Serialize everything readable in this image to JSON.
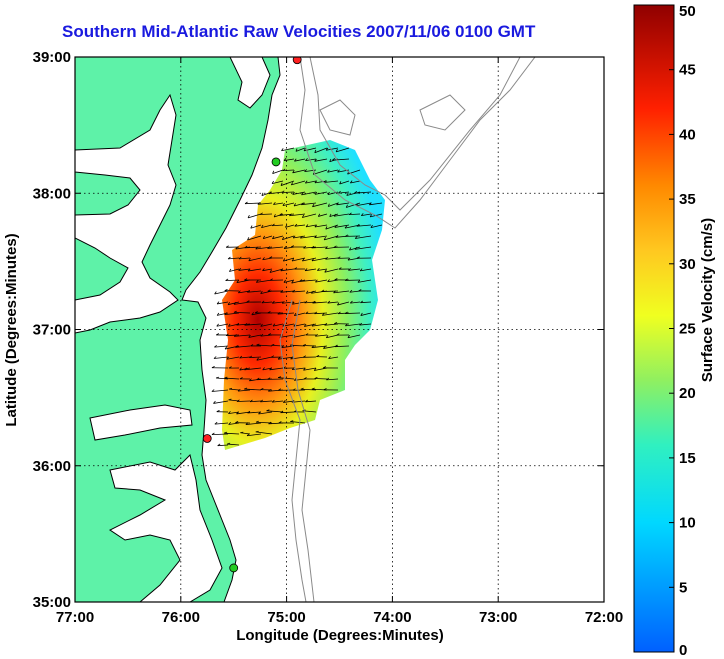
{
  "title": "Southern Mid-Atlantic Raw Velocities 2007/11/06 0100 GMT",
  "map": {
    "xlabel": "Longitude (Degrees:Minutes)",
    "ylabel": "Latitude (Degrees:Minutes)",
    "lon_range": [
      -77,
      -72
    ],
    "lat_range": [
      35,
      39
    ],
    "lon_ticks": [
      "77:00",
      "76:00",
      "75:00",
      "74:00",
      "73:00",
      "72:00"
    ],
    "lat_ticks": [
      "39:00",
      "38:00",
      "37:00",
      "36:00",
      "35:00"
    ],
    "land_color": "#5ef2a8",
    "coastline_color": "#000000",
    "bathymetry_color": "#8a8a8a",
    "grid": true,
    "stations": [
      {
        "color": "#ff2020",
        "lon": -74.9,
        "lat": 38.98
      },
      {
        "color": "#22cc22",
        "lon": -75.1,
        "lat": 38.23
      },
      {
        "color": "#ff2020",
        "lon": -75.75,
        "lat": 36.2
      },
      {
        "color": "#22cc22",
        "lon": -75.5,
        "lat": 35.25
      }
    ]
  },
  "colorbar": {
    "label": "Surface Velocity (cm/s)",
    "min": 0,
    "max": 50,
    "ticks": [
      "0",
      "5",
      "10",
      "15",
      "20",
      "25",
      "30",
      "35",
      "40",
      "45",
      "50"
    ]
  }
}
